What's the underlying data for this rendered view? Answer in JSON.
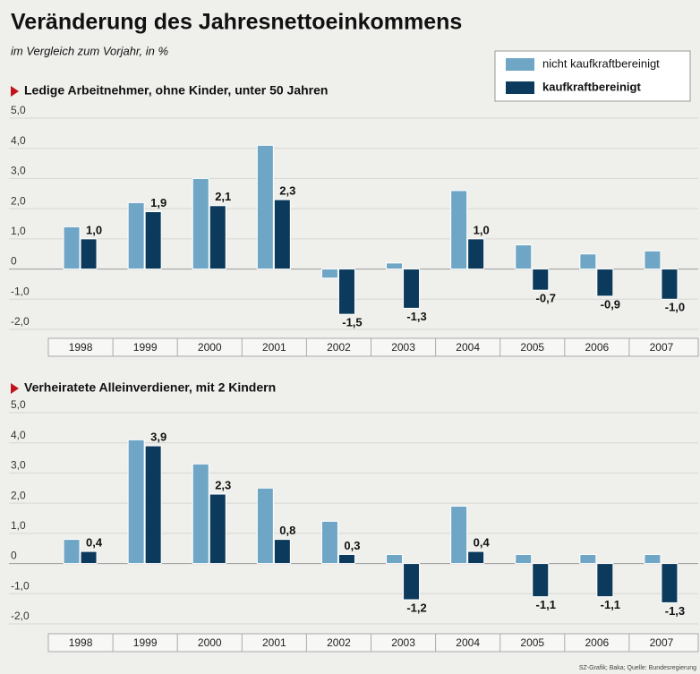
{
  "title": "Veränderung des Jahresnettoeinkommens",
  "subtitle": "im Vergleich zum Vorjahr, in %",
  "source": "SZ-Grafik; Baka; Quelle: Bundesregierung",
  "chart_data": [
    {
      "type": "bar",
      "title": "Ledige Arbeitnehmer, ohne Kinder, unter 50 Jahren",
      "categories": [
        "1998",
        "1999",
        "2000",
        "2001",
        "2002",
        "2003",
        "2004",
        "2005",
        "2006",
        "2007"
      ],
      "series": [
        {
          "name": "nicht kaufkraftbereinigt",
          "color": "#6fa6c6",
          "values": [
            1.4,
            2.2,
            3.0,
            4.1,
            -0.3,
            0.2,
            2.6,
            0.8,
            0.5,
            0.6
          ]
        },
        {
          "name": "kaufkraftbereinigt",
          "color": "#0b3a5c",
          "values": [
            1.0,
            1.9,
            2.1,
            2.3,
            -1.5,
            -1.3,
            1.0,
            -0.7,
            -0.9,
            -1.0
          ],
          "value_labels": [
            "1,0",
            "1,9",
            "2,1",
            "2,3",
            "-1,5",
            "-1,3",
            "1,0",
            "-0,7",
            "-0,9",
            "-1,0"
          ]
        }
      ],
      "ylim": [
        -2,
        5
      ],
      "yticks": [
        {
          "value": 5,
          "label": "5,0"
        },
        {
          "value": 4,
          "label": "4,0"
        },
        {
          "value": 3,
          "label": "3,0"
        },
        {
          "value": 2,
          "label": "2,0"
        },
        {
          "value": 1,
          "label": "1,0"
        },
        0,
        {
          "value": -1,
          "label": "-1,0"
        },
        {
          "value": -2,
          "label": "-2,0"
        }
      ],
      "grid": true
    },
    {
      "type": "bar",
      "title": "Verheiratete Alleinverdiener, mit 2 Kindern",
      "categories": [
        "1998",
        "1999",
        "2000",
        "2001",
        "2002",
        "2003",
        "2004",
        "2005",
        "2006",
        "2007"
      ],
      "series": [
        {
          "color": "#6fa6c6",
          "values": [
            0.8,
            4.1,
            3.3,
            2.5,
            1.4,
            0.3,
            1.9,
            0.3,
            0.3,
            0.3
          ]
        },
        {
          "color": "#0b3a5c",
          "values": [
            0.4,
            3.9,
            2.3,
            0.8,
            0.3,
            -1.2,
            0.4,
            -1.1,
            -1.1,
            -1.3
          ],
          "value_labels": [
            "0,4",
            "3,9",
            "2,3",
            "0,8",
            "0,3",
            "-1,2",
            "0,4",
            "-1,1",
            "-1,1",
            "-1,3"
          ]
        }
      ],
      "ylim": [
        -2,
        5
      ],
      "yticks": [
        {
          "value": 5,
          "label": "5,0"
        },
        {
          "value": 4,
          "label": "4,0"
        },
        {
          "value": 3,
          "label": "3,0"
        },
        {
          "value": 2,
          "label": "2,0"
        },
        {
          "value": 1,
          "label": "1,0"
        },
        0,
        {
          "value": -1,
          "label": "-1,0"
        },
        {
          "value": -2,
          "label": "-2,0"
        }
      ],
      "grid": true
    }
  ]
}
